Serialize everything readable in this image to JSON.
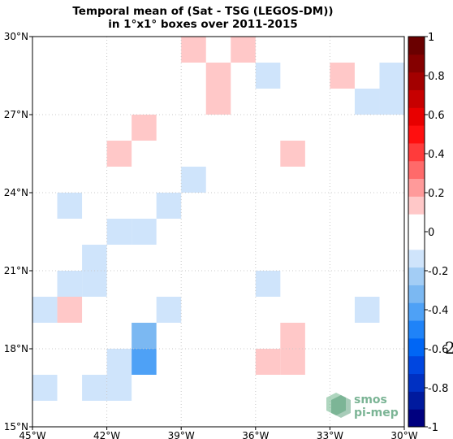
{
  "title": {
    "line1": "Temporal mean of (Sat - TSG (LEGOS-DM))",
    "line2": "in 1°x1° boxes over 2011-2015"
  },
  "map": {
    "lon_range": [
      -45,
      -30
    ],
    "lat_range": [
      15,
      30
    ],
    "x_ticks": [
      {
        "value": -45,
        "label": "45°W"
      },
      {
        "value": -42,
        "label": "42°W"
      },
      {
        "value": -39,
        "label": "39°W"
      },
      {
        "value": -36,
        "label": "36°W"
      },
      {
        "value": -33,
        "label": "33°W"
      },
      {
        "value": -30,
        "label": "30°W"
      }
    ],
    "y_ticks": [
      {
        "value": 15,
        "label": "15°N"
      },
      {
        "value": 18,
        "label": "18°N"
      },
      {
        "value": 21,
        "label": "21°N"
      },
      {
        "value": 24,
        "label": "24°N"
      },
      {
        "value": 27,
        "label": "27°N"
      },
      {
        "value": 30,
        "label": "30°N"
      }
    ],
    "grid": true
  },
  "cells": [
    {
      "lon": -39,
      "lat": 29,
      "value": 0.15
    },
    {
      "lon": -37,
      "lat": 29,
      "value": 0.15
    },
    {
      "lon": -38,
      "lat": 28,
      "value": 0.15
    },
    {
      "lon": -38,
      "lat": 27,
      "value": 0.15
    },
    {
      "lon": -36,
      "lat": 28,
      "value": -0.15
    },
    {
      "lon": -33,
      "lat": 28,
      "value": 0.15
    },
    {
      "lon": -31,
      "lat": 28,
      "value": -0.15
    },
    {
      "lon": -32,
      "lat": 27,
      "value": -0.15
    },
    {
      "lon": -31,
      "lat": 27,
      "value": -0.15
    },
    {
      "lon": -41,
      "lat": 26,
      "value": 0.15
    },
    {
      "lon": -42,
      "lat": 25,
      "value": 0.15
    },
    {
      "lon": -35,
      "lat": 25,
      "value": 0.15
    },
    {
      "lon": -39,
      "lat": 24,
      "value": -0.15
    },
    {
      "lon": -44,
      "lat": 23,
      "value": -0.15
    },
    {
      "lon": -40,
      "lat": 23,
      "value": -0.15
    },
    {
      "lon": -42,
      "lat": 22,
      "value": -0.15
    },
    {
      "lon": -41,
      "lat": 22,
      "value": -0.15
    },
    {
      "lon": -43,
      "lat": 21,
      "value": -0.15
    },
    {
      "lon": -44,
      "lat": 20,
      "value": -0.15
    },
    {
      "lon": -43,
      "lat": 20,
      "value": -0.15
    },
    {
      "lon": -36,
      "lat": 20,
      "value": -0.15
    },
    {
      "lon": -45,
      "lat": 19,
      "value": -0.15
    },
    {
      "lon": -44,
      "lat": 19,
      "value": 0.15
    },
    {
      "lon": -40,
      "lat": 19,
      "value": -0.15
    },
    {
      "lon": -32,
      "lat": 19,
      "value": -0.15
    },
    {
      "lon": -41,
      "lat": 18,
      "value": -0.35
    },
    {
      "lon": -35,
      "lat": 18,
      "value": 0.15
    },
    {
      "lon": -42,
      "lat": 17,
      "value": -0.15
    },
    {
      "lon": -41,
      "lat": 17,
      "value": -0.45
    },
    {
      "lon": -36,
      "lat": 17,
      "value": 0.15
    },
    {
      "lon": -35,
      "lat": 17,
      "value": 0.15
    },
    {
      "lon": -45,
      "lat": 16,
      "value": -0.15
    },
    {
      "lon": -43,
      "lat": 16,
      "value": -0.15
    },
    {
      "lon": -42,
      "lat": 16,
      "value": -0.15
    }
  ],
  "colorbar": {
    "min": -1,
    "max": 1,
    "ticks": [
      {
        "value": 1,
        "label": "1"
      },
      {
        "value": 0.8,
        "label": "0.8"
      },
      {
        "value": 0.6,
        "label": "0.6"
      },
      {
        "value": 0.4,
        "label": "0.4"
      },
      {
        "value": 0.2,
        "label": "0.2"
      },
      {
        "value": 0,
        "label": "0"
      },
      {
        "value": -0.2,
        "label": "-0.2"
      },
      {
        "value": -0.4,
        "label": "-0.4"
      },
      {
        "value": -0.6,
        "label": "-0.6"
      },
      {
        "value": -0.8,
        "label": "-0.8"
      },
      {
        "value": -1,
        "label": "-1"
      }
    ],
    "colors": [
      "#00007f",
      "#001a9e",
      "#0030c2",
      "#0046e0",
      "#0066f5",
      "#1f83f8",
      "#4ea1f6",
      "#7bb8f2",
      "#a3cdf5",
      "#cfe4fb",
      "#ffffff",
      "#ffffff",
      "#ffc8c8",
      "#ff9a9a",
      "#ff6a6a",
      "#ff3b3b",
      "#ff0f0f",
      "#e80000",
      "#c70000",
      "#a30000",
      "#850000",
      "#6a0000"
    ]
  },
  "logo": {
    "line1": "smos",
    "line2": "pi-mep"
  },
  "edge_glyph": "2"
}
